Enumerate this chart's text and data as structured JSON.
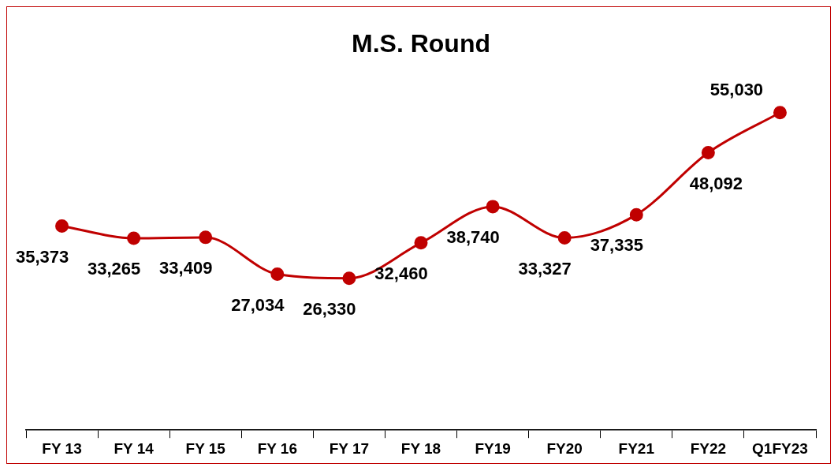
{
  "chart_data": {
    "type": "line",
    "title": "M.S. Round",
    "categories": [
      "FY 13",
      "FY 14",
      "FY 15",
      "FY 16",
      "FY 17",
      "FY 18",
      "FY19",
      "FY20",
      "FY21",
      "FY22",
      "Q1FY23"
    ],
    "series": [
      {
        "color": "#c00000",
        "values": [
          35373,
          33265,
          33409,
          27034,
          26330,
          32460,
          38740,
          33327,
          37335,
          48092,
          55030
        ],
        "value_labels": [
          "35,373",
          "33,265",
          "33,409",
          "27,034",
          "26,330",
          "32,460",
          "38,740",
          "33,327",
          "37,335",
          "48,092",
          "55,030"
        ]
      }
    ],
    "tick_labels": "x",
    "marker": "circle",
    "line_style": "solid",
    "grid": false,
    "legend": false
  }
}
